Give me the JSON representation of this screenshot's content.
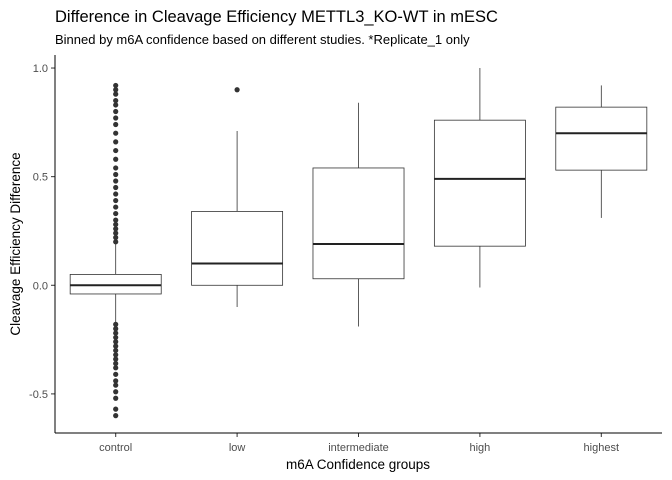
{
  "chart_data": {
    "type": "boxplot",
    "title": "Difference in Cleavage Efficiency METTL3_KO-WT in mESC",
    "subtitle": "Binned by m6A confidence based on different studies.  *Replicate_1 only",
    "xlabel": "m6A Confidence groups",
    "ylabel": "Cleavage Efficiency Difference",
    "ylim": [
      -0.68,
      1.06
    ],
    "yticks": [
      -0.5,
      0.0,
      0.5,
      1.0
    ],
    "ytick_labels": [
      "-0.5",
      "0.0",
      "0.5",
      "1.0"
    ],
    "grid": false,
    "categories": [
      "control",
      "low",
      "intermediate",
      "high",
      "highest"
    ],
    "boxes": [
      {
        "category": "control",
        "whisker_low": -0.17,
        "q1": -0.04,
        "median": 0.0,
        "q3": 0.05,
        "whisker_high": 0.19,
        "outliers": [
          -0.6,
          -0.57,
          -0.52,
          -0.49,
          -0.46,
          -0.44,
          -0.41,
          -0.38,
          -0.36,
          -0.34,
          -0.32,
          -0.3,
          -0.28,
          -0.26,
          -0.24,
          -0.22,
          -0.2,
          -0.18,
          0.2,
          0.22,
          0.24,
          0.26,
          0.28,
          0.3,
          0.33,
          0.36,
          0.39,
          0.42,
          0.45,
          0.48,
          0.51,
          0.54,
          0.58,
          0.62,
          0.66,
          0.7,
          0.74,
          0.77,
          0.8,
          0.83,
          0.85,
          0.88,
          0.9,
          0.92
        ]
      },
      {
        "category": "low",
        "whisker_low": -0.1,
        "q1": 0.0,
        "median": 0.1,
        "q3": 0.34,
        "whisker_high": 0.71,
        "outliers": [
          0.9
        ]
      },
      {
        "category": "intermediate",
        "whisker_low": -0.19,
        "q1": 0.03,
        "median": 0.19,
        "q3": 0.54,
        "whisker_high": 0.84,
        "outliers": []
      },
      {
        "category": "high",
        "whisker_low": -0.01,
        "q1": 0.18,
        "median": 0.49,
        "q3": 0.76,
        "whisker_high": 1.0,
        "outliers": []
      },
      {
        "category": "highest",
        "whisker_low": 0.31,
        "q1": 0.53,
        "median": 0.7,
        "q3": 0.82,
        "whisker_high": 0.92,
        "outliers": []
      }
    ]
  }
}
